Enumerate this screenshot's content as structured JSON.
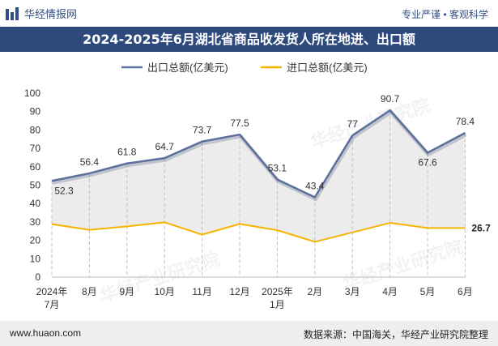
{
  "header": {
    "brand": "华经情报网",
    "tagline": "专业严谨 • 客观科学",
    "title": "2024-2025年6月湖北省商品收发货人所在地进、出口额"
  },
  "footer": {
    "site": "www.huaon.com",
    "source": "数据来源：中国海关，华经产业研究院整理"
  },
  "watermarks": [
    "华经产业研究院",
    "www.huaon.com"
  ],
  "colors": {
    "export": "#5b6e9c",
    "import": "#f4b400",
    "area": "#ececec",
    "title_bg": "#2e4a7d"
  },
  "chart_data": {
    "type": "line",
    "categories": [
      [
        "2024年",
        "7月"
      ],
      [
        "8月"
      ],
      [
        "9月"
      ],
      [
        "10月"
      ],
      [
        "11月"
      ],
      [
        "12月"
      ],
      [
        "2025年",
        "1月"
      ],
      [
        "2月"
      ],
      [
        "3月"
      ],
      [
        "4月"
      ],
      [
        "5月"
      ],
      [
        "6月"
      ]
    ],
    "series": [
      {
        "name": "出口总额(亿美元)",
        "values": [
          52.3,
          56.4,
          61.8,
          64.7,
          73.7,
          77.5,
          53.1,
          43.4,
          77,
          90.7,
          67.6,
          78.4
        ],
        "labels": [
          "52.3",
          "56.4",
          "61.8",
          "64.7",
          "73.7",
          "77.5",
          "53.1",
          "43.4",
          "77",
          "90.7",
          "67.6",
          "78.4"
        ]
      },
      {
        "name": "进口总额(亿美元)",
        "values": [
          28.8,
          25.7,
          27.6,
          29.8,
          23.1,
          28.9,
          25.5,
          19.2,
          24.3,
          29.5,
          26.7,
          26.7
        ],
        "labels": [
          "",
          "",
          "",
          "",
          "",
          "",
          "",
          "",
          "",
          "",
          "",
          "26.7"
        ]
      }
    ],
    "yticks": [
      "0",
      "10",
      "20",
      "30",
      "40",
      "50",
      "60",
      "70",
      "80",
      "90",
      "100"
    ],
    "ylim": [
      0,
      100
    ],
    "legend": "top-center",
    "grid": false
  }
}
